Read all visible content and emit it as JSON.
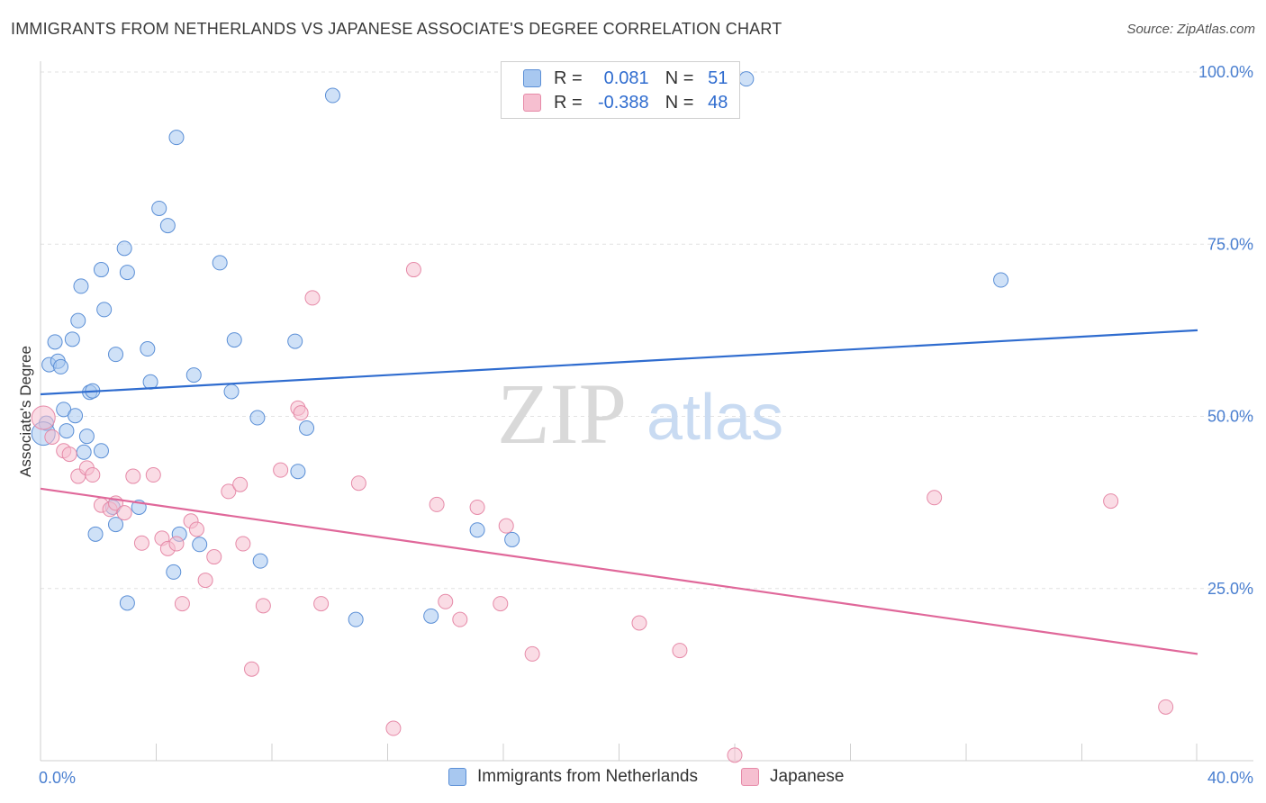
{
  "title": "IMMIGRANTS FROM NETHERLANDS VS JAPANESE ASSOCIATE'S DEGREE CORRELATION CHART",
  "source": "Source: ZipAtlas.com",
  "watermark": {
    "zip": "ZIP",
    "atlas": "atlas"
  },
  "legend_top": {
    "rows": [
      {
        "r_label": "R =",
        "r_value": "0.081",
        "n_label": "N =",
        "n_value": "51",
        "color": "#a8c8f0",
        "stroke": "#5b8fd6"
      },
      {
        "r_label": "R =",
        "r_value": "-0.388",
        "n_label": "N =",
        "n_value": "48",
        "color": "#f6bfd0",
        "stroke": "#e68aa8"
      }
    ]
  },
  "legend_bottom": {
    "items": [
      {
        "label": "Immigrants from Netherlands",
        "color": "#a8c8f0",
        "stroke": "#5b8fd6"
      },
      {
        "label": "Japanese",
        "color": "#f6bfd0",
        "stroke": "#e68aa8"
      }
    ]
  },
  "chart_data": {
    "type": "scatter",
    "title": "IMMIGRANTS FROM NETHERLANDS VS JAPANESE ASSOCIATE'S DEGREE CORRELATION CHART",
    "xlabel": "",
    "ylabel": "Associate's Degree",
    "xlim": [
      0,
      40
    ],
    "ylim": [
      0,
      100
    ],
    "x_tick_labels": [
      "0.0%",
      "40.0%"
    ],
    "y_ticks": [
      25,
      50,
      75,
      100
    ],
    "y_tick_labels": [
      "25.0%",
      "50.0%",
      "75.0%",
      "100.0%"
    ],
    "grid": true,
    "series": [
      {
        "name": "Immigrants from Netherlands",
        "color": "#5b8fd6",
        "fill": "#a8c8f0",
        "trend": {
          "x": [
            0,
            40
          ],
          "y": [
            53.2,
            62.5
          ]
        },
        "points": [
          [
            0.2,
            49.0
          ],
          [
            0.3,
            57.5
          ],
          [
            0.5,
            60.8
          ],
          [
            0.6,
            58.0
          ],
          [
            0.7,
            57.2
          ],
          [
            0.8,
            51.0
          ],
          [
            0.9,
            47.9
          ],
          [
            1.1,
            61.2
          ],
          [
            1.2,
            50.1
          ],
          [
            1.3,
            63.9
          ],
          [
            1.4,
            68.9
          ],
          [
            1.5,
            44.8
          ],
          [
            1.6,
            47.1
          ],
          [
            1.7,
            53.5
          ],
          [
            1.8,
            53.7
          ],
          [
            1.9,
            32.9
          ],
          [
            2.1,
            45.0
          ],
          [
            2.1,
            71.3
          ],
          [
            2.2,
            65.5
          ],
          [
            2.5,
            36.8
          ],
          [
            2.6,
            34.3
          ],
          [
            2.6,
            59.0
          ],
          [
            2.9,
            74.4
          ],
          [
            3.0,
            70.9
          ],
          [
            3.0,
            22.9
          ],
          [
            3.4,
            36.8
          ],
          [
            3.7,
            59.8
          ],
          [
            3.8,
            55.0
          ],
          [
            4.1,
            80.2
          ],
          [
            4.4,
            77.7
          ],
          [
            4.6,
            27.4
          ],
          [
            4.7,
            90.5
          ],
          [
            4.8,
            32.9
          ],
          [
            5.3,
            56.0
          ],
          [
            5.5,
            31.4
          ],
          [
            6.2,
            72.3
          ],
          [
            6.6,
            53.6
          ],
          [
            6.7,
            61.1
          ],
          [
            7.5,
            49.8
          ],
          [
            7.6,
            29.0
          ],
          [
            8.8,
            60.9
          ],
          [
            8.9,
            42.0
          ],
          [
            9.2,
            48.3
          ],
          [
            10.1,
            96.6
          ],
          [
            10.9,
            20.5
          ],
          [
            13.5,
            21.0
          ],
          [
            15.1,
            33.5
          ],
          [
            16.3,
            32.1
          ],
          [
            24.4,
            99.0
          ],
          [
            33.2,
            69.8
          ],
          [
            0.1,
            47.5
          ]
        ]
      },
      {
        "name": "Japanese",
        "color": "#e68aa8",
        "fill": "#f6bfd0",
        "trend": {
          "x": [
            0,
            40
          ],
          "y": [
            39.5,
            15.5
          ]
        },
        "points": [
          [
            0.1,
            49.8
          ],
          [
            0.4,
            47.0
          ],
          [
            0.8,
            45.0
          ],
          [
            1.0,
            44.5
          ],
          [
            1.3,
            41.3
          ],
          [
            1.6,
            42.5
          ],
          [
            1.8,
            41.5
          ],
          [
            2.1,
            37.1
          ],
          [
            2.4,
            36.5
          ],
          [
            2.6,
            37.4
          ],
          [
            2.9,
            36.0
          ],
          [
            3.2,
            41.3
          ],
          [
            3.5,
            31.6
          ],
          [
            3.9,
            41.5
          ],
          [
            4.2,
            32.3
          ],
          [
            4.4,
            30.8
          ],
          [
            4.7,
            31.5
          ],
          [
            4.9,
            22.8
          ],
          [
            5.2,
            34.8
          ],
          [
            5.4,
            33.6
          ],
          [
            5.7,
            26.2
          ],
          [
            6.0,
            29.6
          ],
          [
            6.5,
            39.1
          ],
          [
            6.9,
            40.1
          ],
          [
            7.0,
            31.5
          ],
          [
            7.3,
            13.3
          ],
          [
            7.7,
            22.5
          ],
          [
            8.3,
            42.2
          ],
          [
            8.9,
            51.2
          ],
          [
            9.0,
            50.5
          ],
          [
            9.4,
            67.2
          ],
          [
            9.7,
            22.8
          ],
          [
            11.0,
            40.3
          ],
          [
            12.2,
            4.7
          ],
          [
            12.9,
            71.3
          ],
          [
            13.7,
            37.2
          ],
          [
            14.0,
            23.1
          ],
          [
            14.5,
            20.5
          ],
          [
            15.1,
            36.8
          ],
          [
            15.9,
            22.8
          ],
          [
            16.1,
            34.1
          ],
          [
            17.0,
            15.5
          ],
          [
            20.7,
            20.0
          ],
          [
            22.1,
            16.0
          ],
          [
            24.0,
            0.8
          ],
          [
            30.9,
            38.2
          ],
          [
            37.0,
            37.7
          ],
          [
            38.9,
            7.8
          ]
        ]
      }
    ]
  }
}
